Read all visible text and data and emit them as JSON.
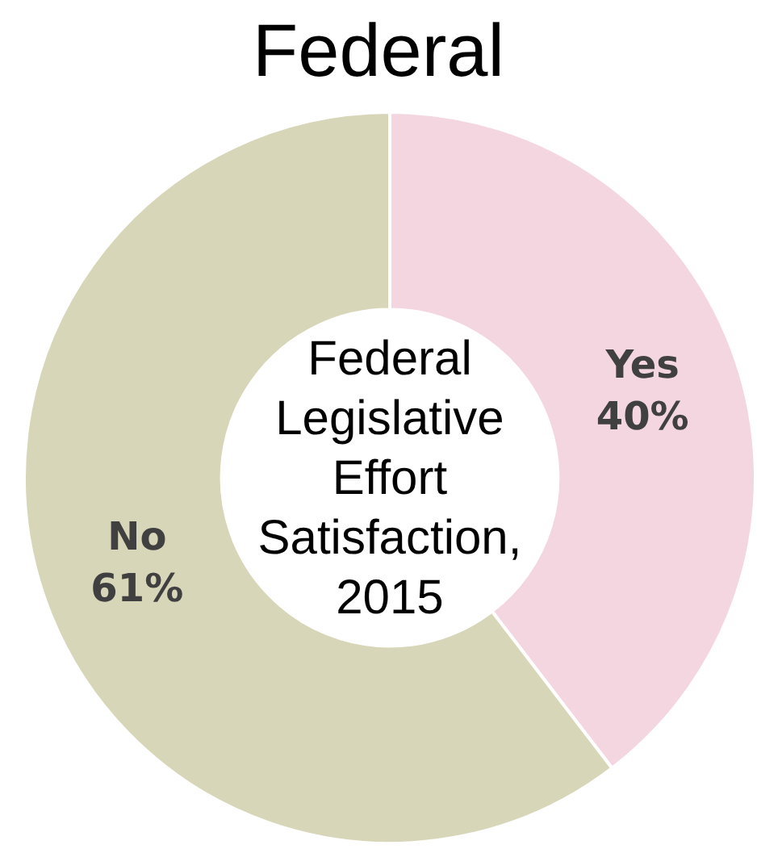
{
  "chart_data": {
    "type": "donut",
    "title": "Federal",
    "categories": [
      "Yes",
      "No"
    ],
    "values": [
      40,
      61
    ],
    "colors": [
      "#f3d6e0",
      "#d8d6b8"
    ],
    "value_labels": [
      "40%",
      "61%"
    ],
    "data_labels": true,
    "legend": false,
    "annotations": [
      "Federal Legislative Effort Satisfaction, 2015"
    ]
  }
}
